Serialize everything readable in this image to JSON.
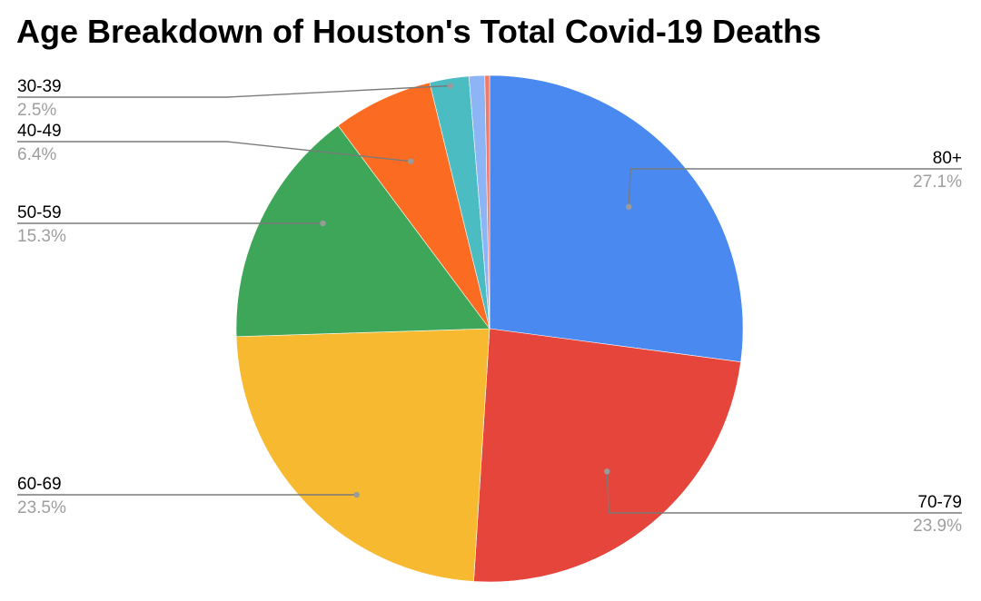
{
  "chart_data": {
    "type": "pie",
    "title": "Age Breakdown of Houston's Total Covid-19 Deaths",
    "slices": [
      {
        "label": "80+",
        "value": 27.1,
        "pct_label": "27.1%",
        "color": "#4a89f0",
        "show_label": true,
        "label_side": "right"
      },
      {
        "label": "70-79",
        "value": 23.9,
        "pct_label": "23.9%",
        "color": "#e5453b",
        "show_label": true,
        "label_side": "right"
      },
      {
        "label": "60-69",
        "value": 23.5,
        "pct_label": "23.5%",
        "color": "#f6b92f",
        "show_label": true,
        "label_side": "left"
      },
      {
        "label": "50-59",
        "value": 15.3,
        "pct_label": "15.3%",
        "color": "#3ea658",
        "show_label": true,
        "label_side": "left"
      },
      {
        "label": "40-49",
        "value": 6.4,
        "pct_label": "6.4%",
        "color": "#fb6c22",
        "show_label": true,
        "label_side": "left"
      },
      {
        "label": "30-39",
        "value": 2.5,
        "pct_label": "2.5%",
        "color": "#4cbcc3",
        "show_label": true,
        "label_side": "left"
      },
      {
        "label": "",
        "value": 1.0,
        "pct_label": "",
        "color": "#8db5f6",
        "show_label": false
      },
      {
        "label": "",
        "value": 0.3,
        "pct_label": "",
        "color": "#f07a6c",
        "show_label": false
      }
    ],
    "start_angle_deg": 0,
    "direction": "clockwise",
    "legend": "none",
    "label_color": "#000000",
    "pct_color": "#9e9e9e",
    "leader_color": "#7a7a7a"
  }
}
